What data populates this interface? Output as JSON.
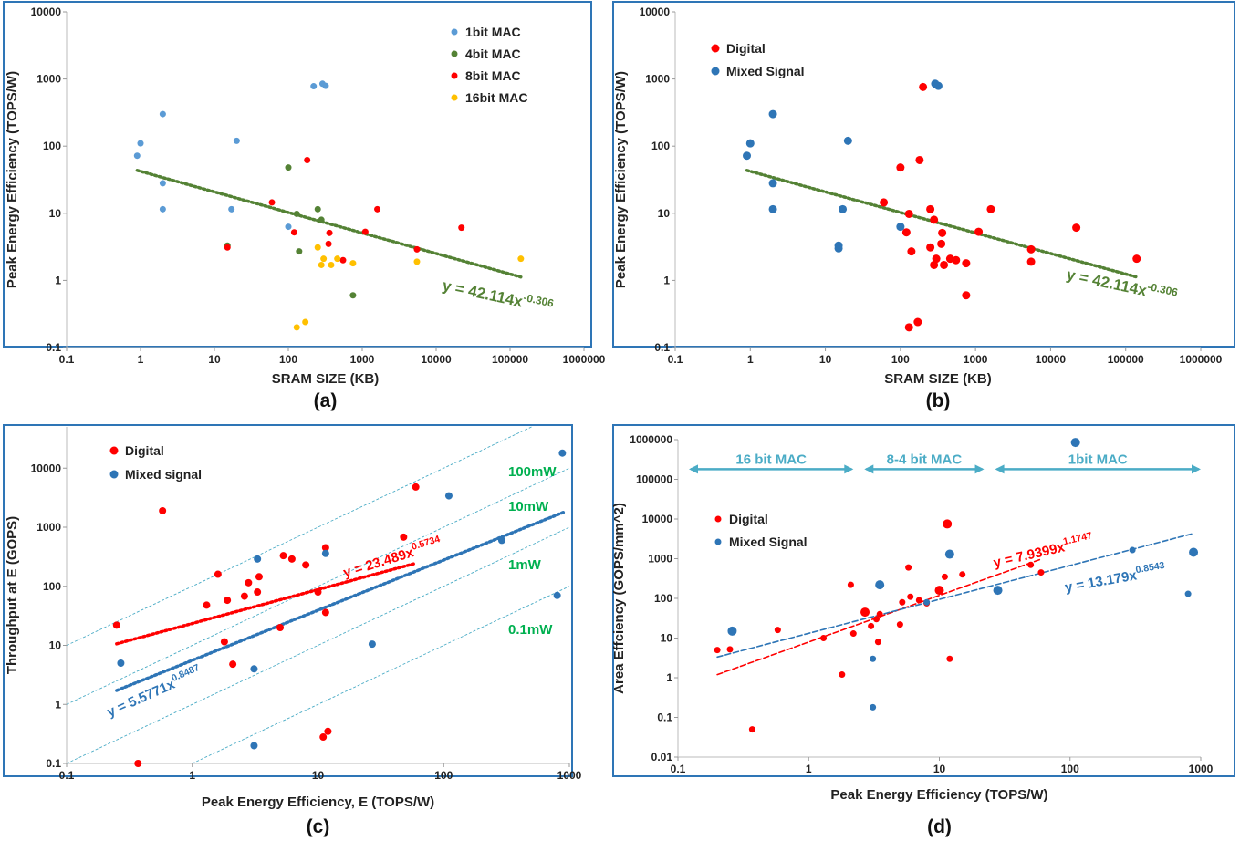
{
  "chart_data": [
    {
      "id": "a",
      "type": "scatter",
      "panel_label": "(a)",
      "xlabel": "SRAM SIZE (KB)",
      "ylabel": "Peak Energy Efficiency (TOPS/W)",
      "xscale": "log",
      "yscale": "log",
      "xlim": [
        0.1,
        1000000
      ],
      "ylim": [
        0.1,
        10000
      ],
      "xticks": [
        "0.1",
        "1",
        "10",
        "100",
        "1000",
        "10000",
        "100000",
        "1000000"
      ],
      "yticks": [
        "0.1",
        "1",
        "10",
        "100",
        "1000",
        "10000"
      ],
      "legend_position": "top-right",
      "series": [
        {
          "name": "1bit MAC",
          "color": "#5b9bd5",
          "points": [
            [
              0.9,
              72
            ],
            [
              1,
              110
            ],
            [
              2,
              300
            ],
            [
              2,
              28
            ],
            [
              2,
              11.5
            ],
            [
              17,
              11.5
            ],
            [
              20,
              120
            ],
            [
              100,
              6.3
            ],
            [
              220,
              780
            ],
            [
              290,
              850
            ],
            [
              320,
              790
            ]
          ]
        },
        {
          "name": "4bit MAC",
          "color": "#548235",
          "points": [
            [
              15,
              3.3
            ],
            [
              100,
              48
            ],
            [
              130,
              9.8
            ],
            [
              140,
              2.7
            ],
            [
              250,
              11.5
            ],
            [
              280,
              8
            ],
            [
              750,
              0.6
            ]
          ]
        },
        {
          "name": "8bit MAC",
          "color": "#ff0000",
          "points": [
            [
              15,
              3.1
            ],
            [
              60,
              14.5
            ],
            [
              120,
              5.2
            ],
            [
              180,
              62
            ],
            [
              350,
              3.5
            ],
            [
              360,
              5.1
            ],
            [
              550,
              2
            ],
            [
              1100,
              5.3
            ],
            [
              1600,
              11.5
            ],
            [
              22000,
              6.1
            ],
            [
              5500,
              2.9
            ]
          ]
        },
        {
          "name": "16bit MAC",
          "color": "#ffc000",
          "points": [
            [
              130,
              0.2
            ],
            [
              170,
              0.24
            ],
            [
              250,
              3.1
            ],
            [
              280,
              1.7
            ],
            [
              300,
              2.1
            ],
            [
              380,
              1.7
            ],
            [
              460,
              2.1
            ],
            [
              750,
              1.8
            ],
            [
              5500,
              1.9
            ],
            [
              140000,
              2.1
            ]
          ]
        }
      ],
      "trendline": {
        "label": "y = 42.114x",
        "exponent": "-0.306",
        "coef": 42.114,
        "power": -0.306,
        "x_range": [
          0.9,
          140000
        ],
        "color": "#548235"
      }
    },
    {
      "id": "b",
      "type": "scatter",
      "panel_label": "(b)",
      "xlabel": "SRAM SIZE (KB)",
      "ylabel": "Peak Energy Efficiency (TOPS/W)",
      "xscale": "log",
      "yscale": "log",
      "xlim": [
        0.1,
        1000000
      ],
      "ylim": [
        0.1,
        10000
      ],
      "xticks": [
        "0.1",
        "1",
        "10",
        "100",
        "1000",
        "10000",
        "100000",
        "1000000"
      ],
      "yticks": [
        "0.1",
        "1",
        "10",
        "100",
        "1000",
        "10000"
      ],
      "legend_position": "top-left",
      "series": [
        {
          "name": "Digital",
          "color": "#ff0000",
          "points": [
            [
              60,
              14.5
            ],
            [
              100,
              48
            ],
            [
              120,
              5.2
            ],
            [
              130,
              9.8
            ],
            [
              140,
              2.7
            ],
            [
              130,
              0.2
            ],
            [
              170,
              0.24
            ],
            [
              180,
              62
            ],
            [
              200,
              760
            ],
            [
              250,
              3.1
            ],
            [
              250,
              11.5
            ],
            [
              280,
              8
            ],
            [
              280,
              1.7
            ],
            [
              300,
              2.1
            ],
            [
              350,
              3.5
            ],
            [
              360,
              5.1
            ],
            [
              380,
              1.7
            ],
            [
              460,
              2.1
            ],
            [
              550,
              2
            ],
            [
              750,
              1.8
            ],
            [
              750,
              0.6
            ],
            [
              1100,
              5.3
            ],
            [
              1600,
              11.5
            ],
            [
              5500,
              2.9
            ],
            [
              5500,
              1.9
            ],
            [
              22000,
              6.1
            ],
            [
              140000,
              2.1
            ]
          ]
        },
        {
          "name": "Mixed Signal",
          "color": "#2e75b6",
          "points": [
            [
              0.9,
              72
            ],
            [
              1,
              110
            ],
            [
              2,
              300
            ],
            [
              2,
              28
            ],
            [
              2,
              11.5
            ],
            [
              15,
              3.3
            ],
            [
              15,
              3.0
            ],
            [
              17,
              11.5
            ],
            [
              20,
              120
            ],
            [
              100,
              6.3
            ],
            [
              290,
              850
            ],
            [
              320,
              790
            ]
          ]
        }
      ],
      "trendline": {
        "label": "y = 42.114x",
        "exponent": "-0.306",
        "coef": 42.114,
        "power": -0.306,
        "x_range": [
          0.9,
          140000
        ],
        "color": "#548235"
      }
    },
    {
      "id": "c",
      "type": "scatter",
      "panel_label": "(c)",
      "xlabel": "Peak Energy Efficiency, E (TOPS/W)",
      "ylabel": "Throughput at E (GOPS)",
      "xscale": "log",
      "yscale": "log",
      "xlim": [
        0.1,
        1000
      ],
      "ylim": [
        0.1,
        50000
      ],
      "xticks": [
        "0.1",
        "1",
        "10",
        "100",
        "1000"
      ],
      "yticks": [
        "0.1",
        "1",
        "10",
        "100",
        "1000",
        "10000"
      ],
      "legend_position": "top-left",
      "series": [
        {
          "name": "Digital",
          "color": "#ff0000",
          "points": [
            [
              0.25,
              22
            ],
            [
              0.37,
              0.1
            ],
            [
              0.58,
              1900
            ],
            [
              1.3,
              48
            ],
            [
              1.6,
              160
            ],
            [
              1.8,
              11.5
            ],
            [
              1.9,
              58
            ],
            [
              2.1,
              4.8
            ],
            [
              2.6,
              68
            ],
            [
              2.8,
              115
            ],
            [
              3.3,
              80
            ],
            [
              3.4,
              145
            ],
            [
              5,
              20
            ],
            [
              5.3,
              330
            ],
            [
              6.2,
              290
            ],
            [
              8,
              230
            ],
            [
              10,
              80
            ],
            [
              11,
              0.28
            ],
            [
              11.5,
              450
            ],
            [
              11.5,
              36
            ],
            [
              12,
              0.35
            ],
            [
              48,
              680
            ],
            [
              60,
              4800
            ]
          ]
        },
        {
          "name": "Mixed signal",
          "color": "#2e75b6",
          "points": [
            [
              0.27,
              5
            ],
            [
              3.1,
              4
            ],
            [
              3.1,
              0.2
            ],
            [
              3.3,
              290
            ],
            [
              11.5,
              360
            ],
            [
              27,
              10.5
            ],
            [
              110,
              3400
            ],
            [
              290,
              600
            ],
            [
              800,
              70
            ],
            [
              880,
              18000
            ]
          ]
        }
      ],
      "trendlines": [
        {
          "label": "y = 23.489x",
          "exponent": "0.5734",
          "coef": 23.489,
          "power": 0.5734,
          "x_range": [
            0.25,
            60
          ],
          "color": "#ff0000"
        },
        {
          "label": "y = 5.5771x",
          "exponent": "0.8487",
          "coef": 5.5771,
          "power": 0.8487,
          "x_range": [
            0.25,
            900
          ],
          "color": "#2e75b6"
        }
      ],
      "power_lines": [
        {
          "label": "100mW",
          "power_w": 0.1
        },
        {
          "label": "10mW",
          "power_w": 0.01
        },
        {
          "label": "1mW",
          "power_w": 0.001
        },
        {
          "label": "0.1mW",
          "power_w": 0.0001
        }
      ],
      "power_line_color": "#00b050"
    },
    {
      "id": "d",
      "type": "scatter",
      "panel_label": "(d)",
      "xlabel": "Peak Energy Efficiency (TOPS/W)",
      "ylabel": "Area Effciency (GOPS/mm^2)",
      "xscale": "log",
      "yscale": "log",
      "xlim": [
        0.1,
        1000
      ],
      "ylim": [
        0.01,
        1000000
      ],
      "xticks": [
        "0.1",
        "1",
        "10",
        "100",
        "1000"
      ],
      "yticks": [
        "0.01",
        "0.1",
        "1",
        "10",
        "100",
        "1000",
        "10000",
        "100000",
        "1000000"
      ],
      "legend_position": "left",
      "series": [
        {
          "name": "Digital",
          "color": "#ff0000",
          "points": [
            [
              0.2,
              5
            ],
            [
              0.25,
              5.2
            ],
            [
              0.37,
              0.05
            ],
            [
              0.58,
              16
            ],
            [
              1.3,
              10
            ],
            [
              1.8,
              1.2
            ],
            [
              2.1,
              220
            ],
            [
              2.2,
              13
            ],
            [
              2.7,
              45
            ],
            [
              3,
              20
            ],
            [
              3.3,
              30
            ],
            [
              3.4,
              8
            ],
            [
              3.5,
              40
            ],
            [
              5,
              22
            ],
            [
              5.2,
              80
            ],
            [
              5.8,
              600
            ],
            [
              6,
              110
            ],
            [
              7,
              90
            ],
            [
              8,
              75
            ],
            [
              10,
              160
            ],
            [
              11,
              350
            ],
            [
              11.5,
              7500
            ],
            [
              12,
              3
            ],
            [
              15,
              400
            ],
            [
              50,
              700
            ],
            [
              60,
              450
            ]
          ]
        },
        {
          "name": "Mixed Signal",
          "color": "#2e75b6",
          "points": [
            [
              0.26,
              15
            ],
            [
              3.1,
              3
            ],
            [
              3.1,
              0.18
            ],
            [
              3.5,
              220
            ],
            [
              8,
              80
            ],
            [
              12,
              1300
            ],
            [
              28,
              160
            ],
            [
              110,
              850000
            ],
            [
              300,
              1650
            ],
            [
              800,
              130
            ],
            [
              880,
              1450
            ]
          ]
        }
      ],
      "trendlines": [
        {
          "label": "y = 7.9399x",
          "exponent": "1.1747",
          "coef": 7.9399,
          "power": 1.1747,
          "x_range": [
            0.2,
            60
          ],
          "color": "#ff0000"
        },
        {
          "label": "y = 13.179x",
          "exponent": "0.8543",
          "coef": 13.179,
          "power": 0.8543,
          "x_range": [
            0.2,
            880
          ],
          "color": "#2e75b6"
        }
      ],
      "ranges": [
        {
          "label": "16 bit MAC",
          "x_from": 0.1,
          "x_to": 2.2
        },
        {
          "label": "8-4 bit MAC",
          "x_from": 2.2,
          "x_to": 22
        },
        {
          "label": "1bit MAC",
          "x_from": 22,
          "x_to": 1000
        }
      ],
      "range_y": 180000,
      "range_color": "#4bacc6"
    }
  ]
}
